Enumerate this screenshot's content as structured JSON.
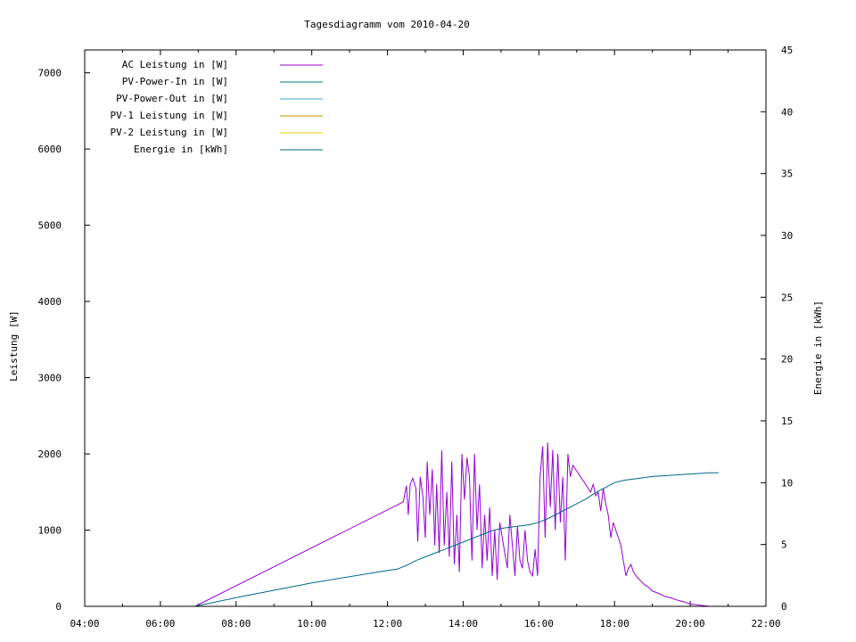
{
  "chart_data": {
    "type": "line",
    "title": "Tagesdiagramm vom 2010-04-20",
    "ylabel": "Leistung [W]",
    "y2label": "Energie in [kWh]",
    "xlabel": "",
    "xlim": [
      "04:00",
      "22:00"
    ],
    "ylim": [
      0,
      7300
    ],
    "y2lim": [
      0,
      45
    ],
    "x_ticks": [
      "04:00",
      "06:00",
      "08:00",
      "10:00",
      "12:00",
      "14:00",
      "16:00",
      "18:00",
      "20:00",
      "22:00"
    ],
    "y_ticks": [
      "0",
      "1000",
      "2000",
      "3000",
      "4000",
      "5000",
      "6000",
      "7000"
    ],
    "y2_ticks": [
      "0",
      "5",
      "10",
      "15",
      "20",
      "25",
      "30",
      "35",
      "40",
      "45"
    ],
    "grid": false,
    "legend_position": "top-left",
    "series": [
      {
        "name": "AC Leistung in [W]",
        "axis": "left",
        "color": "#9400d3",
        "x": [
          "06:55",
          "12:25",
          "12:30",
          "12:33",
          "12:36",
          "12:40",
          "12:45",
          "12:48",
          "12:52",
          "12:56",
          "13:00",
          "13:03",
          "13:07",
          "13:11",
          "13:15",
          "13:18",
          "13:22",
          "13:26",
          "13:30",
          "13:34",
          "13:38",
          "13:42",
          "13:46",
          "13:50",
          "13:54",
          "13:58",
          "14:02",
          "14:06",
          "14:10",
          "14:14",
          "14:18",
          "14:22",
          "14:26",
          "14:30",
          "14:34",
          "14:38",
          "14:42",
          "14:46",
          "14:50",
          "14:54",
          "14:58",
          "15:02",
          "15:06",
          "15:10",
          "15:14",
          "15:18",
          "15:22",
          "15:26",
          "15:30",
          "15:34",
          "15:38",
          "15:42",
          "15:46",
          "15:50",
          "15:54",
          "15:58",
          "16:02",
          "16:06",
          "16:10",
          "16:14",
          "16:18",
          "16:22",
          "16:26",
          "16:30",
          "16:34",
          "16:38",
          "16:42",
          "16:46",
          "16:50",
          "16:54",
          "16:58",
          "17:02",
          "17:06",
          "17:10",
          "17:14",
          "17:18",
          "17:22",
          "17:26",
          "17:30",
          "17:34",
          "17:38",
          "17:42",
          "17:46",
          "17:50",
          "17:54",
          "17:58",
          "18:02",
          "18:06",
          "18:10",
          "18:14",
          "18:18",
          "18:22",
          "18:26",
          "18:30",
          "18:36",
          "18:42",
          "18:48",
          "18:54",
          "19:00",
          "19:10",
          "19:20",
          "19:30",
          "19:40",
          "19:50",
          "20:00",
          "20:10",
          "20:20",
          "20:30",
          "20:40",
          "20:45"
        ],
        "values": [
          0,
          1370,
          1580,
          1200,
          1600,
          1680,
          1550,
          850,
          1700,
          1450,
          900,
          1900,
          1200,
          1800,
          800,
          1600,
          700,
          2050,
          800,
          1500,
          650,
          1900,
          550,
          1200,
          450,
          2000,
          1400,
          1950,
          1700,
          600,
          2000,
          1000,
          1600,
          500,
          1200,
          600,
          1300,
          400,
          1000,
          350,
          1100,
          900,
          700,
          500,
          1200,
          800,
          400,
          1050,
          600,
          500,
          1000,
          600,
          450,
          400,
          750,
          400,
          1700,
          2100,
          900,
          2150,
          1300,
          2050,
          1000,
          2000,
          1100,
          1700,
          600,
          2000,
          1700,
          1850,
          1800,
          1750,
          1700,
          1650,
          1600,
          1550,
          1500,
          1600,
          1450,
          1500,
          1250,
          1550,
          1350,
          1200,
          900,
          1100,
          1000,
          900,
          800,
          600,
          400,
          500,
          550,
          450,
          380,
          330,
          280,
          250,
          200,
          170,
          130,
          110,
          80,
          60,
          30,
          20,
          10,
          0,
          0,
          0
        ]
      },
      {
        "name": "PV-Power-In in [W]",
        "axis": "left",
        "color": "#008080",
        "x": [],
        "values": []
      },
      {
        "name": "PV-Power-Out in [W]",
        "axis": "left",
        "color": "#3aa8c8",
        "x": [],
        "values": []
      },
      {
        "name": "PV-1 Leistung in [W]",
        "axis": "left",
        "color": "#c89000",
        "x": [],
        "values": []
      },
      {
        "name": "PV-2 Leistung in [W]",
        "axis": "left",
        "color": "#e8d000",
        "x": [],
        "values": []
      },
      {
        "name": "Energie in [kWh]",
        "axis": "right",
        "color": "#00688b",
        "x": [
          "06:55",
          "08:00",
          "09:00",
          "10:00",
          "11:00",
          "12:00",
          "12:15",
          "12:30",
          "12:45",
          "13:00",
          "13:15",
          "13:30",
          "13:45",
          "14:00",
          "14:15",
          "14:30",
          "14:45",
          "15:00",
          "15:15",
          "15:30",
          "15:45",
          "16:00",
          "16:15",
          "16:30",
          "16:45",
          "17:00",
          "17:15",
          "17:30",
          "17:45",
          "18:00",
          "18:15",
          "18:30",
          "18:45",
          "19:00",
          "19:30",
          "20:00",
          "20:30",
          "20:45"
        ],
        "values": [
          0,
          0.7,
          1.3,
          1.9,
          2.4,
          2.9,
          3.0,
          3.3,
          3.7,
          4.0,
          4.3,
          4.6,
          4.9,
          5.2,
          5.5,
          5.8,
          6.1,
          6.3,
          6.4,
          6.5,
          6.6,
          6.8,
          7.1,
          7.5,
          7.9,
          8.3,
          8.7,
          9.2,
          9.6,
          10.0,
          10.2,
          10.3,
          10.4,
          10.5,
          10.6,
          10.7,
          10.8,
          10.8
        ]
      }
    ]
  }
}
